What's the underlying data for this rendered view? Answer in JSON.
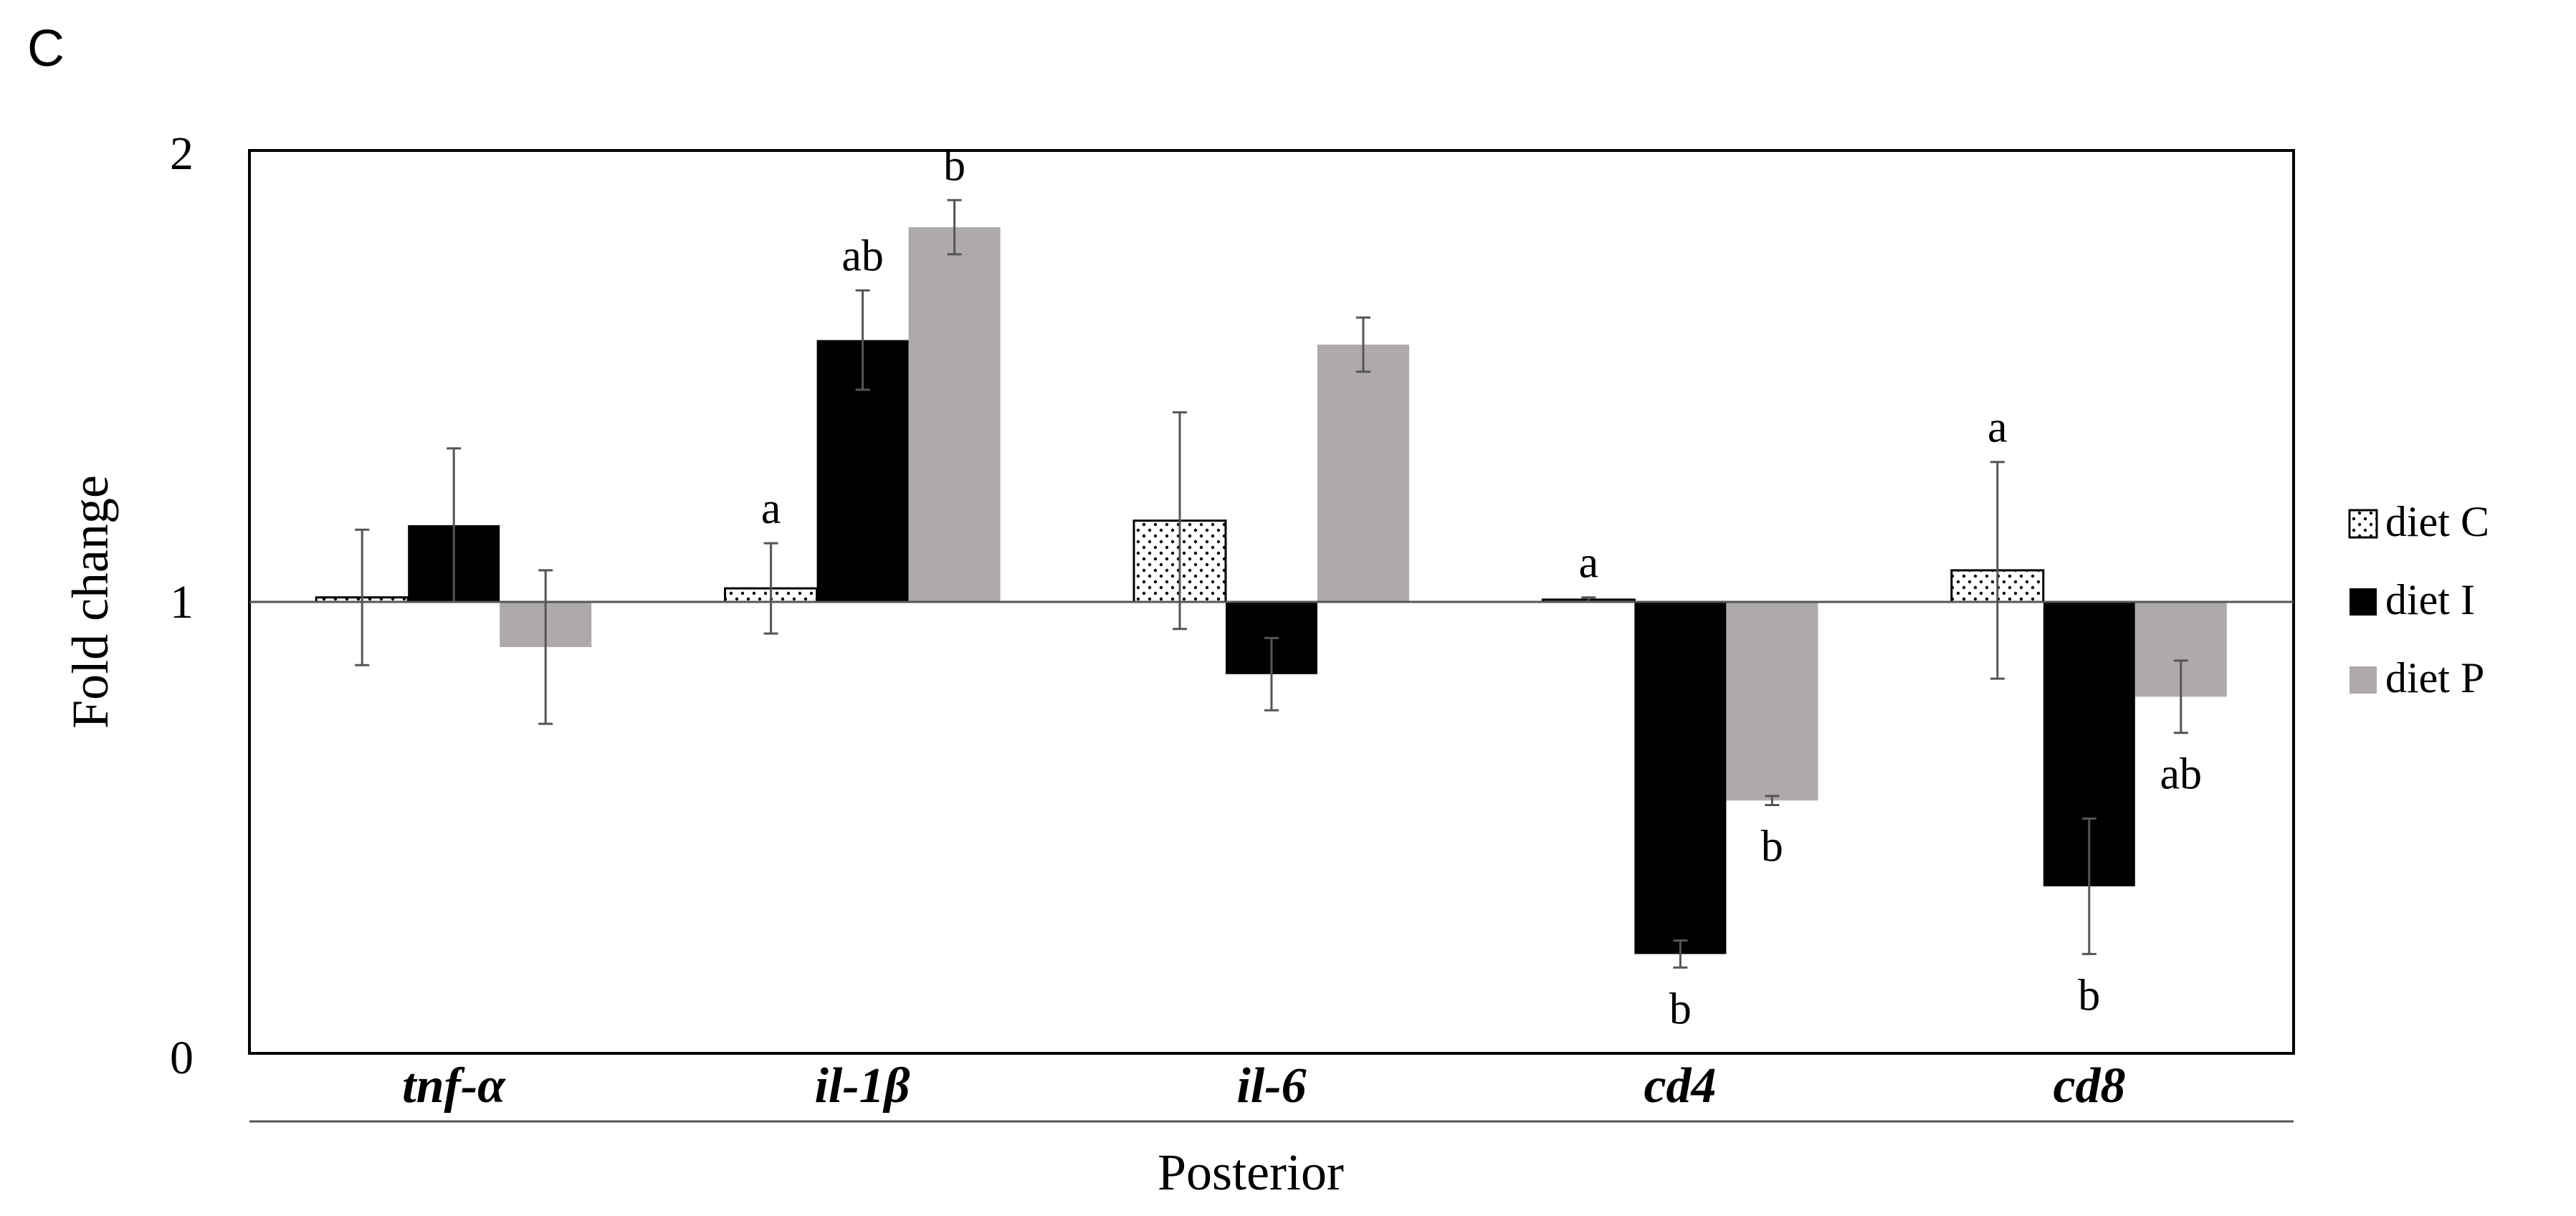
{
  "chart_data": {
    "type": "bar",
    "panel_label": "C",
    "ylabel": "Fold change",
    "xlabel": "Posterior",
    "ylim": [
      0,
      2
    ],
    "yticks": [
      "0",
      "1",
      "2"
    ],
    "baseline": 1,
    "categories": [
      "tnf-α",
      "il-1β",
      "il-6",
      "cd4",
      "cd8"
    ],
    "series": [
      {
        "name": "diet C",
        "pattern": "dots",
        "color": "#ffffff",
        "values": [
          1.01,
          1.03,
          1.18,
          1.005,
          1.07
        ],
        "errors": [
          0.15,
          0.1,
          0.24,
          0.005,
          0.24
        ],
        "labels": [
          "",
          "a",
          "",
          "a",
          "a"
        ]
      },
      {
        "name": "diet I",
        "pattern": "solid",
        "color": "#000000",
        "values": [
          1.17,
          1.58,
          0.84,
          0.22,
          0.37
        ],
        "errors": [
          0.17,
          0.11,
          0.08,
          0.03,
          0.15
        ],
        "labels": [
          "",
          "ab",
          "",
          "b",
          "b"
        ]
      },
      {
        "name": "diet P",
        "pattern": "solid",
        "color": "#afaaaa",
        "values": [
          0.9,
          1.83,
          1.57,
          0.56,
          0.79
        ],
        "errors": [
          0.17,
          0.06,
          0.06,
          0.01,
          0.08
        ],
        "labels": [
          "",
          "b",
          "",
          "b",
          "ab"
        ]
      }
    ],
    "legend_position": "right"
  }
}
